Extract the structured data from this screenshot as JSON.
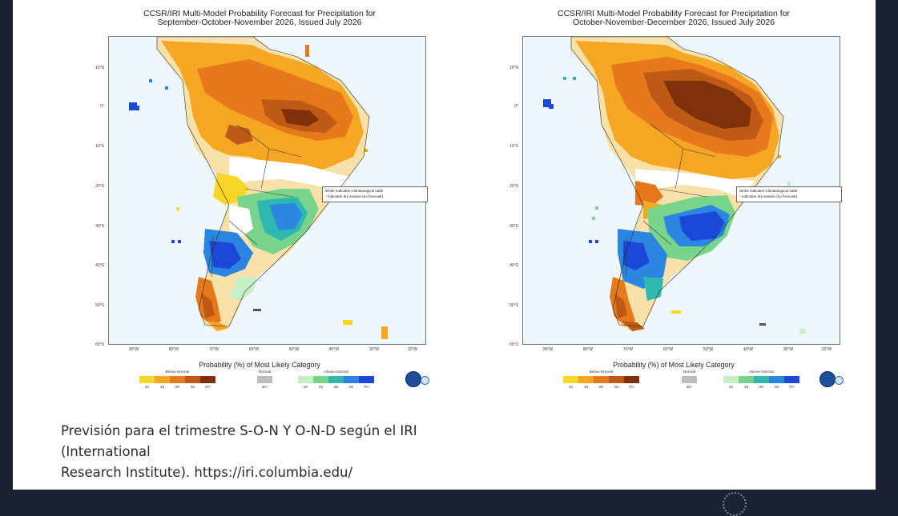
{
  "maps": [
    {
      "title_line1": "CCSR/IRI Multi-Model Probability Forecast for Precipitation for",
      "title_line2": "September-October-November 2026, Issued July 2026"
    },
    {
      "title_line1": "CCSR/IRI Multi-Model Probability Forecast for Precipitation for",
      "title_line2": "October-November-December 2026, Issued July 2026"
    }
  ],
  "lat_labels": [
    "10°N",
    "0°",
    "10°S",
    "20°S",
    "30°S",
    "40°S",
    "50°S",
    "60°S"
  ],
  "lon_labels": [
    "90°W",
    "80°W",
    "70°W",
    "60°W",
    "50°W",
    "40°W",
    "30°W",
    "20°W"
  ],
  "map_legend": {
    "white_note": "White indicates Climatological odds",
    "dry_note": "indicates dry season (no forecast)",
    "dry_marker": "*"
  },
  "probability_title": "Probability (%) of Most Likely Category",
  "categories": {
    "below": {
      "label": "Below Normal",
      "ticks": [
        "40",
        "45",
        "50",
        "60",
        "70+"
      ]
    },
    "normal": {
      "label": "Normal",
      "ticks": [
        "40+"
      ]
    },
    "above": {
      "label": "Above Normal",
      "ticks": [
        "40",
        "45",
        "50",
        "60",
        "70+"
      ]
    }
  },
  "colors": {
    "below": [
      "#f7d628",
      "#f5a623",
      "#e5791b",
      "#bf5a16",
      "#7f3209"
    ],
    "normal": [
      "#bdbdbd"
    ],
    "above": [
      "#c7efc6",
      "#77d48a",
      "#2fb7b0",
      "#2a86e0",
      "#1c48d9"
    ],
    "background": "#1c2135",
    "ocean": "#eef8fc"
  },
  "caption": {
    "line1": "Previsión para el trimestre S-O-N Y O-N-D según el IRI",
    "line2": "(International",
    "line3": "Research Institute). https://iri.columbia.edu/"
  }
}
